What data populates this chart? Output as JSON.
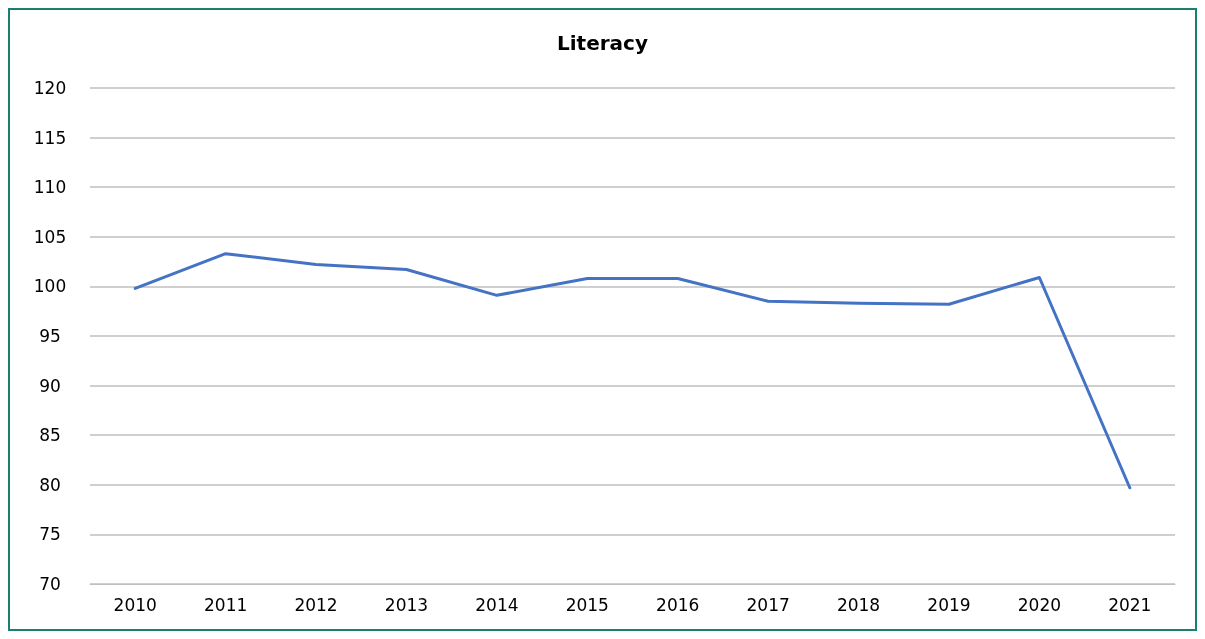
{
  "chart_data": {
    "type": "line",
    "title": "Literacy",
    "categories": [
      "2010",
      "2011",
      "2012",
      "2013",
      "2014",
      "2015",
      "2016",
      "2017",
      "2018",
      "2019",
      "2020",
      "2021"
    ],
    "series": [
      {
        "color": "#4472c4",
        "values": [
          99.8,
          103.3,
          102.2,
          101.7,
          99.1,
          100.8,
          100.8,
          98.5,
          98.3,
          98.2,
          100.9,
          79.7
        ]
      }
    ],
    "ylim": [
      70,
      120
    ],
    "yticks": [
      70,
      75,
      80,
      85,
      90,
      95,
      100,
      105,
      110,
      115,
      120
    ],
    "grid": "y",
    "marker": "none",
    "line_style": "solid"
  }
}
